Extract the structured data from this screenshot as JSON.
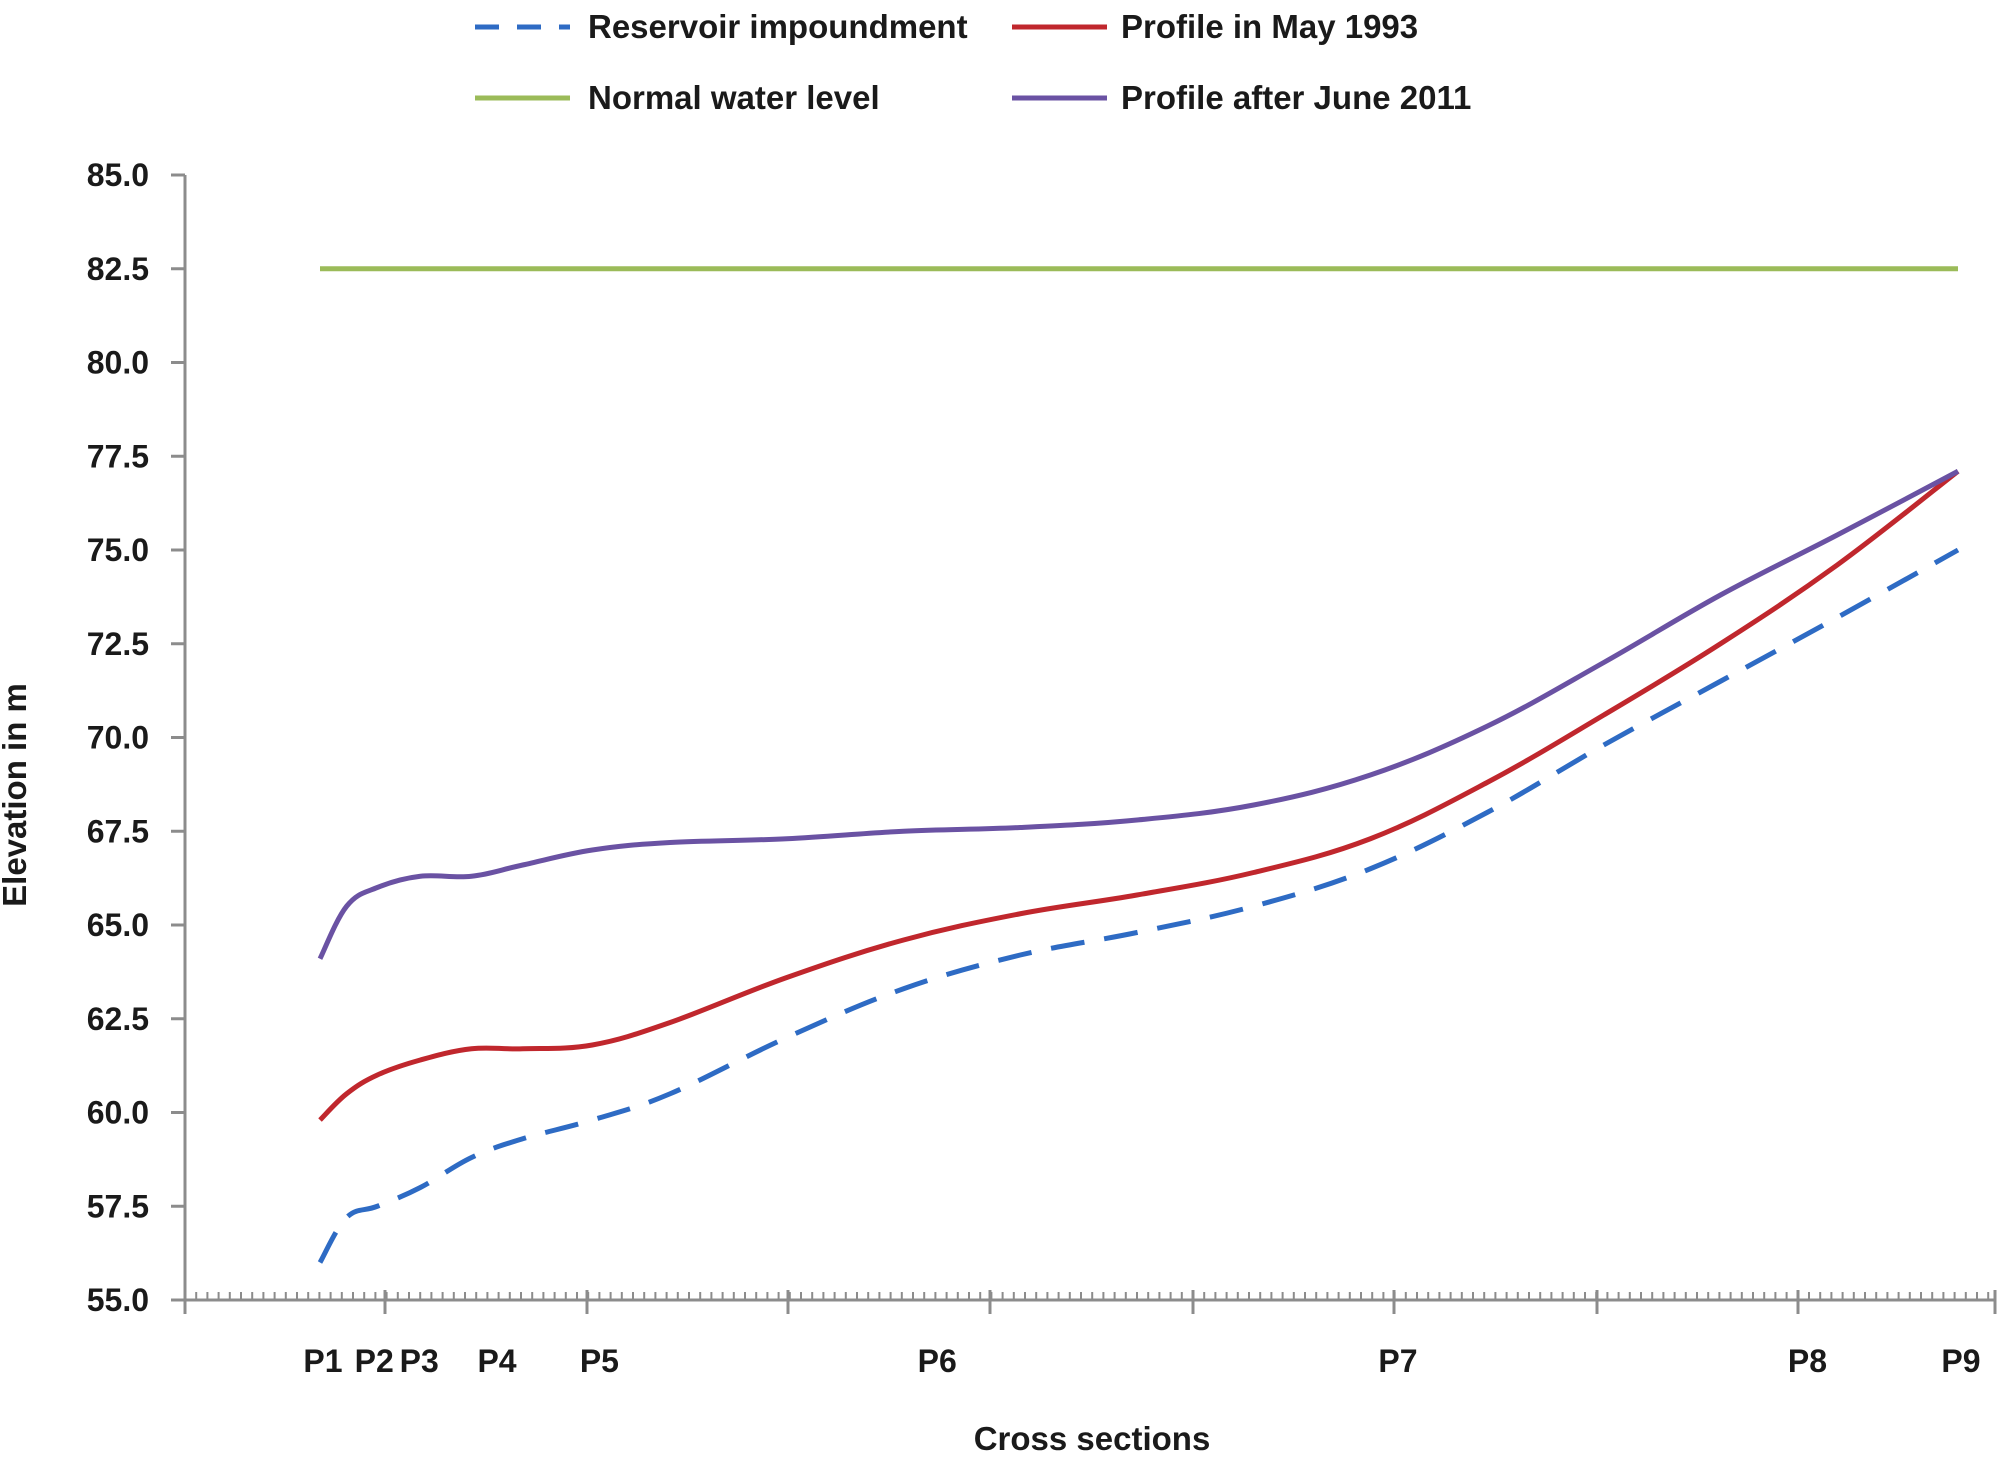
{
  "chart_data": {
    "type": "line",
    "title": "",
    "xlabel": "Cross sections",
    "ylabel": "Elevation in m",
    "ylim": [
      55.0,
      85.0
    ],
    "yticks": [
      "55.0",
      "57.5",
      "60.0",
      "62.5",
      "65.0",
      "67.5",
      "70.0",
      "72.5",
      "75.0",
      "77.5",
      "80.0",
      "82.5",
      "85.0"
    ],
    "xlim": [
      -0.7,
      8.2
    ],
    "categories": [
      "P1",
      "P2",
      "P3",
      "P4",
      "P5",
      "P6",
      "P7",
      "P8",
      "P9"
    ],
    "category_positions": [
      0.0,
      0.25,
      0.47,
      0.85,
      1.35,
      3.0,
      5.25,
      7.25,
      8.0
    ],
    "grid": false,
    "legend_position": "top",
    "series": [
      {
        "name": "Reservoir impoundment",
        "color": "#2e6bc4",
        "dash": true,
        "x": [
          0.0,
          0.13,
          0.28,
          0.49,
          0.74,
          0.99,
          1.33,
          1.71,
          2.28,
          2.85,
          3.42,
          3.99,
          4.56,
          5.13,
          5.7,
          6.27,
          6.84,
          7.41,
          8.0
        ],
        "values": [
          56.0,
          57.2,
          57.5,
          58.0,
          58.8,
          59.3,
          59.8,
          60.5,
          62.0,
          63.3,
          64.2,
          64.8,
          65.5,
          66.5,
          68.0,
          69.8,
          71.5,
          73.2,
          75.0
        ]
      },
      {
        "name": "Profile in May 1993",
        "color": "#c0272d",
        "dash": false,
        "x": [
          0.0,
          0.13,
          0.28,
          0.49,
          0.74,
          0.99,
          1.33,
          1.71,
          2.28,
          2.85,
          3.42,
          3.99,
          4.56,
          5.13,
          5.7,
          6.27,
          6.84,
          7.41,
          8.0
        ],
        "values": [
          59.8,
          60.5,
          61.0,
          61.4,
          61.7,
          61.7,
          61.8,
          62.4,
          63.6,
          64.6,
          65.3,
          65.8,
          66.4,
          67.3,
          68.8,
          70.6,
          72.5,
          74.6,
          77.1
        ]
      },
      {
        "name": "Normal water level",
        "color": "#9bbb59",
        "dash": false,
        "x": [
          0.0,
          8.0
        ],
        "values": [
          82.5,
          82.5
        ]
      },
      {
        "name": "Profile after June 2011",
        "color": "#6a52a3",
        "dash": false,
        "x": [
          0.0,
          0.13,
          0.28,
          0.49,
          0.74,
          0.99,
          1.33,
          1.71,
          2.28,
          2.85,
          3.42,
          3.99,
          4.56,
          5.13,
          5.7,
          6.27,
          6.84,
          7.41,
          8.0
        ],
        "values": [
          64.1,
          65.5,
          66.0,
          66.3,
          66.3,
          66.6,
          67.0,
          67.2,
          67.3,
          67.5,
          67.6,
          67.8,
          68.2,
          69.0,
          70.3,
          72.0,
          73.8,
          75.4,
          77.1
        ]
      }
    ]
  }
}
